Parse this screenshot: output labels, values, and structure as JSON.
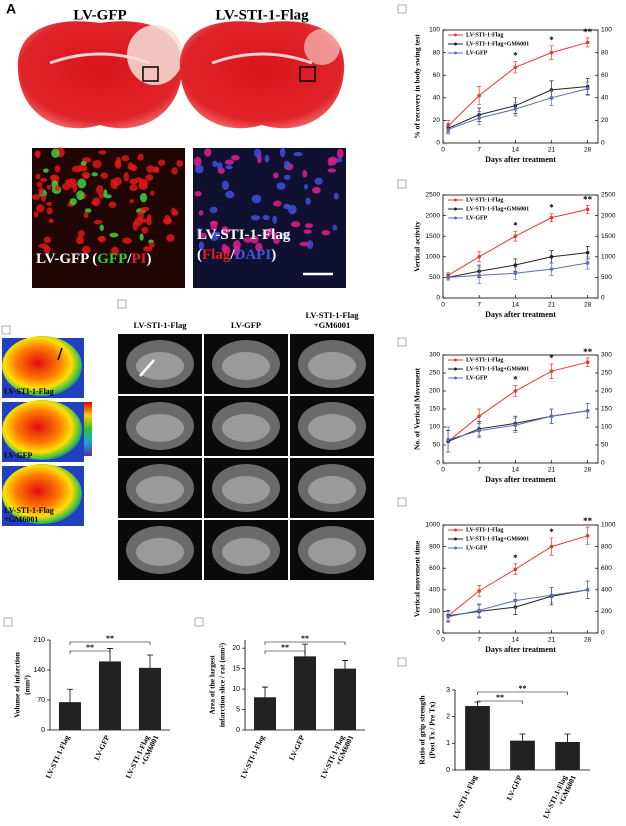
{
  "panel_label": "A",
  "brain_sections": {
    "labels": [
      "LV-GFP",
      "LV-STI-1-Flag"
    ]
  },
  "fluorescence": [
    {
      "lines": [
        [
          {
            "text": "LV-GFP (",
            "color": "#ffffff"
          },
          {
            "text": "GFP",
            "color": "#33cc33"
          },
          {
            "text": "/",
            "color": "#ffffff"
          },
          {
            "text": "PI",
            "color": "#e02020"
          },
          {
            "text": ")",
            "color": "#ffffff"
          }
        ]
      ]
    },
    {
      "lines": [
        [
          {
            "text": "LV-STI-1-Flag",
            "color": "#ffffff"
          }
        ],
        [
          {
            "text": "(",
            "color": "#ffffff"
          },
          {
            "text": "Flag",
            "color": "#e02020"
          },
          {
            "text": "/",
            "color": "#ffffff"
          },
          {
            "text": "DAPI",
            "color": "#4455dd"
          },
          {
            "text": ")",
            "color": "#ffffff"
          }
        ]
      ]
    }
  ],
  "pet_labels": [
    [
      "LV-STI-1-Flag"
    ],
    [
      "LV-GFP"
    ],
    [
      "LV-STI-1-Flag",
      "+GM6001"
    ]
  ],
  "mri_headers": [
    [
      "LV-STI-1-Flag"
    ],
    [
      "LV-GFP"
    ],
    [
      "LV-STI-1-Flag",
      "+GM6001"
    ]
  ],
  "chart_data": [
    {
      "type": "line",
      "ylabel": "% of recovery in body swing test",
      "xlabel": "Days after treatment",
      "x": [
        1,
        7,
        14,
        21,
        28
      ],
      "xlim": [
        0,
        30
      ],
      "xticks": [
        0,
        7,
        14,
        21,
        28
      ],
      "ylim": [
        0,
        100
      ],
      "yticks": [
        0,
        20,
        40,
        60,
        80,
        100
      ],
      "y2lim": [
        0,
        100
      ],
      "y2ticks": [
        0,
        20,
        40,
        60,
        80,
        100
      ],
      "series": [
        {
          "name": "LV-STI-1-Flag",
          "color": "#e8392b",
          "values": [
            15,
            42,
            67,
            80,
            89
          ],
          "errors": [
            5,
            8,
            5,
            6,
            4
          ]
        },
        {
          "name": "LV-STI-1-Flag+GM6001",
          "color": "#222222",
          "values": [
            13,
            25,
            33,
            47,
            50
          ],
          "errors": [
            4,
            6,
            7,
            8,
            7
          ]
        },
        {
          "name": "LV-GFP",
          "color": "#5b6fb5",
          "values": [
            12,
            22,
            30,
            40,
            48
          ],
          "errors": [
            4,
            6,
            6,
            7,
            6
          ]
        }
      ],
      "significance": [
        "*",
        "*",
        "**"
      ],
      "significance_x": [
        14,
        21,
        28
      ]
    },
    {
      "type": "line",
      "ylabel": "Vertical activity",
      "xlabel": "Days after treatment",
      "x": [
        1,
        7,
        14,
        21,
        28
      ],
      "xlim": [
        0,
        30
      ],
      "xticks": [
        0,
        7,
        14,
        21,
        28
      ],
      "ylim": [
        0,
        2500
      ],
      "yticks": [
        0,
        500,
        1000,
        1500,
        2000,
        2500
      ],
      "y2lim": [
        0,
        2500
      ],
      "y2ticks": [
        0,
        500,
        1000,
        1500,
        2000,
        2500
      ],
      "series": [
        {
          "name": "LV-STI-1-Flag",
          "color": "#e8392b",
          "values": [
            550,
            1000,
            1500,
            1950,
            2150
          ],
          "errors": [
            60,
            120,
            120,
            100,
            100
          ]
        },
        {
          "name": "LV-STI-1-Flag+GM6001",
          "color": "#222222",
          "values": [
            500,
            650,
            800,
            1000,
            1100
          ],
          "errors": [
            60,
            150,
            150,
            150,
            150
          ]
        },
        {
          "name": "LV-GFP",
          "color": "#5b6fb5",
          "values": [
            500,
            550,
            600,
            700,
            850
          ],
          "errors": [
            60,
            200,
            150,
            150,
            150
          ]
        }
      ],
      "significance": [
        "*",
        "*",
        "**"
      ],
      "significance_x": [
        14,
        21,
        28
      ]
    },
    {
      "type": "line",
      "ylabel": "No. of Vertical Movement",
      "xlabel": "Days after treatment",
      "x": [
        1,
        7,
        14,
        21,
        28
      ],
      "xlim": [
        0,
        30
      ],
      "xticks": [
        0,
        7,
        14,
        21,
        28
      ],
      "ylim": [
        0,
        300
      ],
      "yticks": [
        0,
        50,
        100,
        150,
        200,
        250,
        300
      ],
      "y2lim": [
        0,
        300
      ],
      "y2ticks": [
        0,
        50,
        100,
        150,
        200,
        250,
        300
      ],
      "series": [
        {
          "name": "LV-STI-1-Flag",
          "color": "#e8392b",
          "values": [
            60,
            130,
            200,
            255,
            280
          ],
          "errors": [
            30,
            20,
            15,
            20,
            12
          ]
        },
        {
          "name": "LV-STI-1-Flag+GM6001",
          "color": "#222222",
          "values": [
            60,
            95,
            110,
            130,
            145
          ],
          "errors": [
            30,
            20,
            20,
            20,
            20
          ]
        },
        {
          "name": "LV-GFP",
          "color": "#5b6fb5",
          "values": [
            65,
            90,
            105,
            130,
            145
          ],
          "errors": [
            35,
            20,
            20,
            20,
            20
          ]
        }
      ],
      "significance": [
        "*",
        "*",
        "**"
      ],
      "significance_x": [
        14,
        21,
        28
      ]
    },
    {
      "type": "line",
      "ylabel": "Vertical movement time",
      "xlabel": "Days after treatment",
      "x": [
        1,
        7,
        14,
        21,
        28
      ],
      "xlim": [
        0,
        30
      ],
      "xticks": [
        0,
        7,
        14,
        21,
        28
      ],
      "ylim": [
        0,
        1000
      ],
      "yticks": [
        0,
        200,
        400,
        600,
        800,
        1000
      ],
      "y2lim": [
        0,
        1000
      ],
      "y2ticks": [
        0,
        200,
        400,
        600,
        800,
        1000
      ],
      "series": [
        {
          "name": "LV-STI-1-Flag",
          "color": "#e8392b",
          "values": [
            160,
            390,
            590,
            800,
            900
          ],
          "errors": [
            50,
            50,
            50,
            80,
            80
          ]
        },
        {
          "name": "LV-STI-1-Flag+GM6001",
          "color": "#222222",
          "values": [
            160,
            200,
            240,
            340,
            400
          ],
          "errors": [
            50,
            60,
            70,
            80,
            80
          ]
        },
        {
          "name": "LV-GFP",
          "color": "#5b6fb5",
          "values": [
            150,
            210,
            300,
            350,
            400
          ],
          "errors": [
            50,
            60,
            70,
            70,
            80
          ]
        }
      ],
      "significance": [
        "*",
        "*",
        "**"
      ],
      "significance_x": [
        14,
        21,
        28
      ]
    },
    {
      "type": "bar",
      "ylabel": [
        "Volume of infarction",
        "(mm³)"
      ],
      "categories": [
        [
          "LV-STI-1-Flag"
        ],
        [
          "LV-GFP"
        ],
        [
          "LV-STI-1-Flag",
          "+GM6001"
        ]
      ],
      "values": [
        65,
        160,
        145
      ],
      "errors": [
        30,
        30,
        30
      ],
      "color": "#222222",
      "ylim": [
        0,
        210
      ],
      "yticks": [
        0,
        70,
        140,
        210
      ],
      "significance": [
        "**",
        "**"
      ]
    },
    {
      "type": "bar",
      "ylabel": [
        "Area of the largest",
        "infarction slice / rat (mm²)"
      ],
      "categories": [
        [
          "LV-STI-1-Flag"
        ],
        [
          "LV-GFP"
        ],
        [
          "LV-STI-1-Flag",
          "+GM6001"
        ]
      ],
      "values": [
        8,
        18,
        15
      ],
      "errors": [
        2.5,
        3,
        2
      ],
      "color": "#222222",
      "ylim": [
        0,
        22
      ],
      "yticks": [
        0,
        5,
        10,
        15,
        20
      ],
      "significance": [
        "**",
        "**"
      ]
    },
    {
      "type": "bar",
      "ylabel": [
        "Ratio of grip strength",
        "(Post Tx / Pre Tx)"
      ],
      "categories": [
        [
          "LV-STI-1-Flag"
        ],
        [
          "LV-GFP"
        ],
        [
          "LV-STI-1-Flag",
          "+GM6001"
        ]
      ],
      "values": [
        2.4,
        1.1,
        1.05
      ],
      "errors": [
        0.15,
        0.25,
        0.3
      ],
      "color": "#222222",
      "ylim": [
        0,
        3
      ],
      "yticks": [
        0,
        1,
        2,
        3
      ],
      "significance": [
        "**",
        "**"
      ]
    }
  ]
}
